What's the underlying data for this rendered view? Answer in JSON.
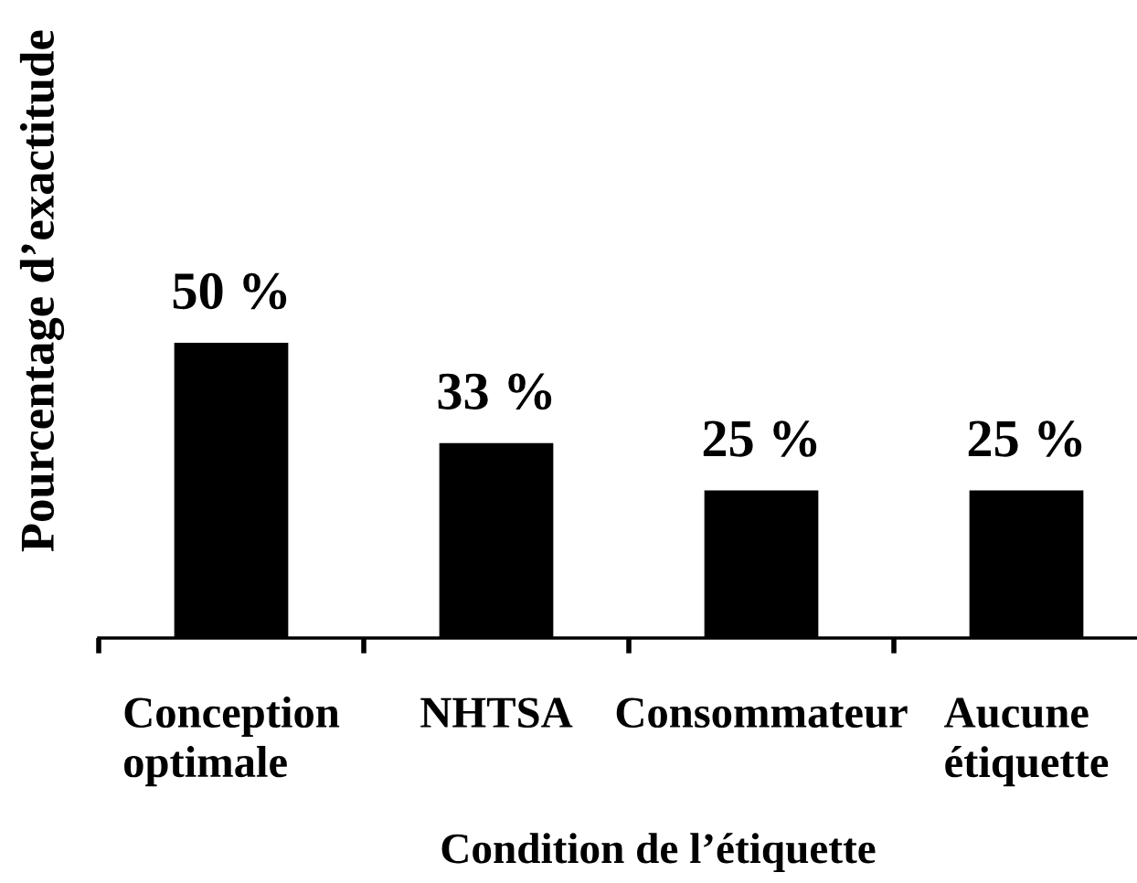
{
  "chart_data": {
    "type": "bar",
    "xlabel": "Condition de l’étiquette",
    "ylabel": "Pourcentage d’exactitude",
    "categories": [
      "Conception\noptimale",
      "NHTSA",
      "Consommateur",
      "Aucune\nétiquette"
    ],
    "values": [
      50,
      33,
      25,
      25
    ],
    "color": "#000000",
    "value_labels": [
      "50 %",
      "33 %",
      "25 %",
      "25 %"
    ],
    "tick_labels": "x"
  }
}
